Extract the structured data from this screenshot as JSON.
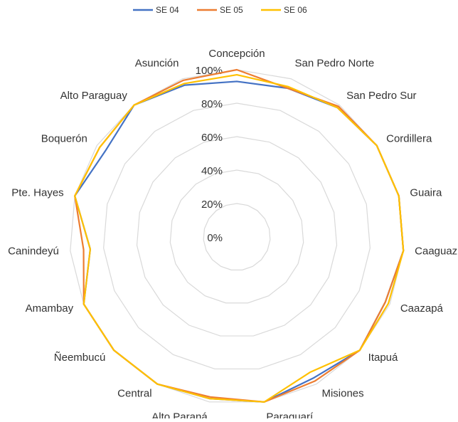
{
  "chart_data": {
    "type": "radar",
    "categories": [
      "Concepción",
      "San Pedro Norte",
      "San Pedro Sur",
      "Cordillera",
      "Guaira",
      "Caaguazú",
      "Caazapá",
      "Itapuá",
      "Misiones",
      "Paraguarí",
      "Alto Paraná",
      "Central",
      "Ñeembucú",
      "Amambay",
      "Canindeyú",
      "Pte. Hayes",
      "Boquerón",
      "Alto Paraguay",
      "Asunción"
    ],
    "series": [
      {
        "name": "SE 04",
        "color": "#4472c4",
        "values": [
          93,
          94,
          98,
          100,
          100,
          100,
          97,
          100,
          96,
          100,
          98,
          100,
          100,
          100,
          88,
          100,
          94,
          100,
          96
        ]
      },
      {
        "name": "SE 05",
        "color": "#ed7d31",
        "values": [
          100,
          94,
          99,
          100,
          100,
          100,
          97,
          100,
          98,
          100,
          97,
          100,
          100,
          100,
          92,
          100,
          98,
          100,
          99
        ]
      },
      {
        "name": "SE 06",
        "color": "#ffc000",
        "values": [
          97,
          95,
          98,
          100,
          100,
          100,
          99,
          100,
          92,
          100,
          98,
          100,
          100,
          100,
          88,
          100,
          98,
          100,
          97
        ]
      }
    ],
    "ylim": [
      0,
      100
    ],
    "yticks": [
      {
        "value": 0,
        "label": "0%"
      },
      {
        "value": 20,
        "label": "20%"
      },
      {
        "value": 40,
        "label": "40%"
      },
      {
        "value": 60,
        "label": "60%"
      },
      {
        "value": 80,
        "label": "80%"
      },
      {
        "value": 100,
        "label": "100%"
      }
    ],
    "grid": true,
    "legend": "top"
  }
}
